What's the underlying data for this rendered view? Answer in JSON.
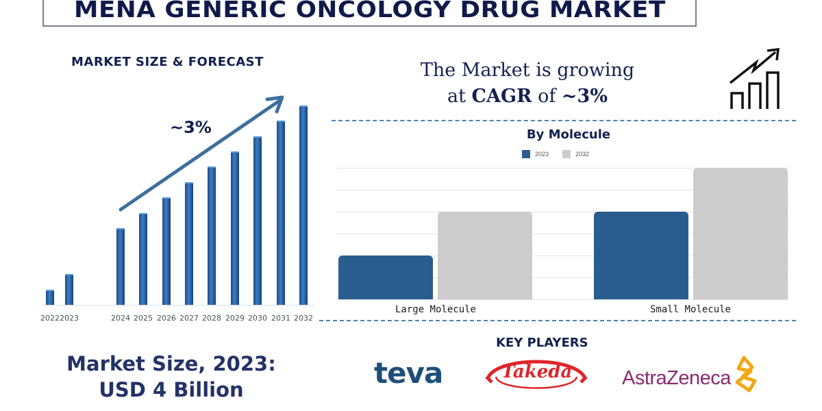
{
  "title": "MENA GENERIC ONCOLOGY DRUG MARKET",
  "market_size_section": {
    "heading": "MARKET SIZE & FORECAST",
    "cagr_badge": "~3%"
  },
  "growth_statement": {
    "line1": "The Market is growing",
    "line2_prefix": "at ",
    "line2_bold": "CAGR",
    "line2_mid": " of ",
    "line2_value": "~3%"
  },
  "molecule_section": {
    "title": "By Molecule",
    "legend": [
      {
        "label": "2023",
        "color": "#2a5d8f"
      },
      {
        "label": "2032",
        "color": "#cccccc"
      }
    ]
  },
  "market_size_summary": {
    "line1": "Market Size, 2023:",
    "line2": "USD 4 Billion"
  },
  "key_players": {
    "heading": "KEY PLAYERS",
    "companies": [
      "teva",
      "Takeda",
      "AstraZeneca"
    ]
  },
  "colors": {
    "navy": "#13204f",
    "bar_blue": "#2a63a6",
    "mol_2023": "#2a5d8f",
    "mol_2032": "#cccccc",
    "divider": "#4a83b8"
  },
  "chart_data": [
    {
      "type": "bar",
      "title": "MARKET SIZE & FORECAST",
      "categories": [
        "2022",
        "2023",
        "2024",
        "2025",
        "2026",
        "2027",
        "2028",
        "2029",
        "2030",
        "2031",
        "2032"
      ],
      "values": [
        1.0,
        2.0,
        5.0,
        6.0,
        7.0,
        8.0,
        9.0,
        10.0,
        11.0,
        12.0,
        13.0
      ],
      "xlabel": "",
      "ylabel": "",
      "grid": false,
      "annotations": [
        "~3%"
      ],
      "note": "Relative bar heights (no axis values shown); gap between 2023 and 2024"
    },
    {
      "type": "bar",
      "title": "By Molecule",
      "categories": [
        "Large Molecule",
        "Small Molecule"
      ],
      "series": [
        {
          "name": "2023",
          "values": [
            2,
            4
          ]
        },
        {
          "name": "2032",
          "values": [
            4,
            6
          ]
        }
      ],
      "xlabel": "",
      "ylabel": "",
      "grid": true,
      "legend_position": "top",
      "note": "Relative heights in gridline units; no axis values shown"
    }
  ]
}
